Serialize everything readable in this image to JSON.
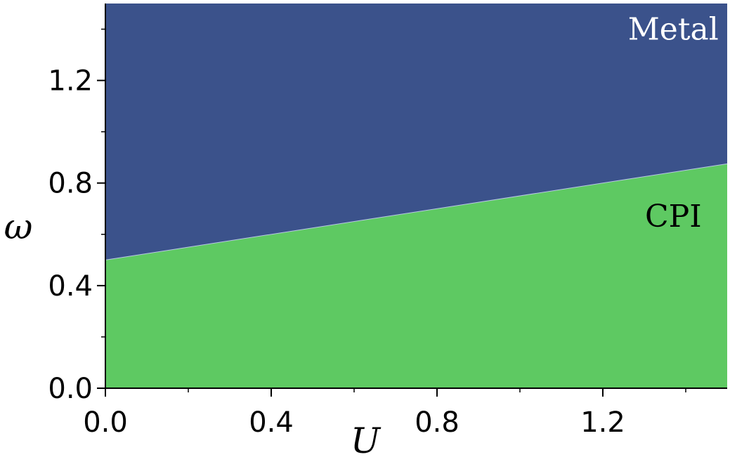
{
  "chart_data": {
    "type": "area",
    "title": "",
    "xlabel": "U",
    "ylabel": "ω",
    "xlim": [
      0,
      1.5
    ],
    "ylim": [
      0,
      1.5
    ],
    "x_ticks": [
      0.0,
      0.4,
      0.8,
      1.2
    ],
    "y_ticks": [
      0.0,
      0.4,
      0.8,
      1.2
    ],
    "x_tick_labels": [
      "0.0",
      "0.4",
      "0.8",
      "1.2"
    ],
    "y_tick_labels": [
      "0.0",
      "0.4",
      "0.8",
      "1.2"
    ],
    "x_minor_ticks": [
      0.2,
      0.6,
      1.0,
      1.4
    ],
    "y_minor_ticks": [
      0.2,
      0.6,
      1.0,
      1.4
    ],
    "grid": false,
    "boundary": {
      "x": [
        0.0,
        1.5
      ],
      "y": [
        0.5,
        0.875
      ]
    },
    "regions": [
      {
        "name": "Metal",
        "position": "above",
        "color": "#3b528b",
        "label_color": "#ffffff",
        "label_at": [
          1.37,
          1.4
        ]
      },
      {
        "name": "CPI",
        "position": "below",
        "color": "#5ec962",
        "label_color": "#000000",
        "label_at": [
          1.37,
          0.67
        ]
      }
    ]
  }
}
